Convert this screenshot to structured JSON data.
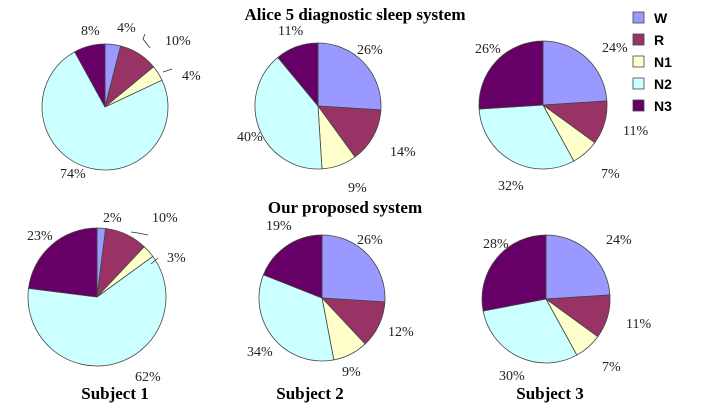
{
  "chart_data": {
    "type": "pie",
    "legend": {
      "placement": "top-right",
      "entries": [
        {
          "key": "W",
          "label": "W",
          "color": "#9999ff"
        },
        {
          "key": "R",
          "label": "R",
          "color": "#993366"
        },
        {
          "key": "N1",
          "label": "N1",
          "color": "#ffffcc"
        },
        {
          "key": "N2",
          "label": "N2",
          "color": "#ccffff"
        },
        {
          "key": "N3",
          "label": "N3",
          "color": "#660066"
        }
      ]
    },
    "category_order": [
      "W",
      "R",
      "N1",
      "N2",
      "N3"
    ],
    "groups": [
      {
        "title": "Alice 5 diagnostic sleep system",
        "charts": [
          {
            "subject": "Subject 1",
            "values": [
              4,
              10,
              4,
              74,
              8
            ],
            "labels": [
              "4%",
              "10%",
              "4%",
              "74%",
              "8%"
            ]
          },
          {
            "subject": "Subject 2",
            "values": [
              26,
              14,
              9,
              40,
              11
            ],
            "labels": [
              "26%",
              "14%",
              "9%",
              "40%",
              "11%"
            ]
          },
          {
            "subject": "Subject 3",
            "values": [
              24,
              11,
              7,
              32,
              26
            ],
            "labels": [
              "24%",
              "11%",
              "7%",
              "32%",
              "26%"
            ]
          }
        ]
      },
      {
        "title": "Our  proposed  system",
        "charts": [
          {
            "subject": "Subject 1",
            "values": [
              2,
              10,
              3,
              62,
              23
            ],
            "labels": [
              "2%",
              "10%",
              "3%",
              "62%",
              "23%"
            ]
          },
          {
            "subject": "Subject 2",
            "values": [
              26,
              12,
              9,
              34,
              19
            ],
            "labels": [
              "26%",
              "12%",
              "9%",
              "34%",
              "19%"
            ]
          },
          {
            "subject": "Subject 3",
            "values": [
              24,
              11,
              7,
              30,
              28
            ],
            "labels": [
              "24%",
              "11%",
              "7%",
              "30%",
              "28%"
            ]
          }
        ]
      }
    ],
    "subject_labels": [
      "Subject 1",
      "Subject 2",
      "Subject 3"
    ]
  }
}
